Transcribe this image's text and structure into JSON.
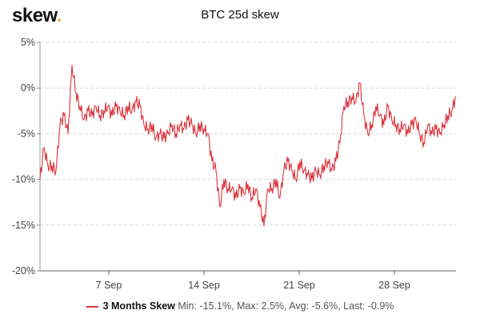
{
  "brand": {
    "logo_text": "skew",
    "logo_dot": ".",
    "dot_color": "#e8b04a"
  },
  "chart_data": {
    "type": "line",
    "title": "BTC 25d skew",
    "xlabel": "",
    "ylabel": "",
    "x_unit": "day of September",
    "xlim": [
      1.94,
      32.53
    ],
    "ylim": [
      -20,
      5
    ],
    "yticks": [
      5,
      0,
      -5,
      -10,
      -15,
      -20
    ],
    "ytick_labels": [
      "5%",
      "0%",
      "-5%",
      "-10%",
      "-15%",
      "-20%"
    ],
    "xticks": [
      7,
      14,
      21,
      28
    ],
    "xtick_labels": [
      "7 Sep",
      "14 Sep",
      "21 Sep",
      "28 Sep"
    ],
    "grid": "horizontal dashed",
    "legend_position": "bottom-center",
    "series": [
      {
        "name": "3 Months Skew",
        "color": "#d9363e",
        "stats": "Min: -15.1%, Max: 2.5%, Avg: -5.6%, Last: -0.9%",
        "x_start": 1.94,
        "x_step": 0.294,
        "values": [
          -10,
          -6.5,
          -8.5,
          -8.5,
          -9,
          -4,
          -3,
          -5,
          2.5,
          -0.5,
          -2,
          -3.5,
          -2.5,
          -3,
          -2,
          -3,
          -2.5,
          -2,
          -3,
          -2,
          -2.5,
          -3,
          -2,
          -2.5,
          -1.5,
          -2,
          -4,
          -4.5,
          -4,
          -5.5,
          -5,
          -5.5,
          -5,
          -4,
          -5,
          -4,
          -4.5,
          -3.5,
          -4,
          -5,
          -4,
          -4.5,
          -5,
          -8,
          -9,
          -13,
          -10,
          -11,
          -11,
          -12,
          -11,
          -11.5,
          -10.5,
          -12,
          -11,
          -13,
          -15.1,
          -11,
          -11,
          -10,
          -12,
          -9,
          -8,
          -9,
          -10,
          -8,
          -9,
          -9.5,
          -10,
          -9,
          -9.5,
          -8.5,
          -8,
          -9,
          -8,
          -6,
          -2,
          -1.5,
          -1,
          -1.5,
          0.5,
          -3,
          -5,
          -4,
          -2,
          -3,
          -4,
          -2,
          -3.5,
          -4,
          -4.5,
          -4,
          -5,
          -4,
          -3.5,
          -5,
          -6,
          -4,
          -5,
          -4.5,
          -5,
          -4,
          -3,
          -2.5,
          -0.9
        ]
      }
    ]
  }
}
